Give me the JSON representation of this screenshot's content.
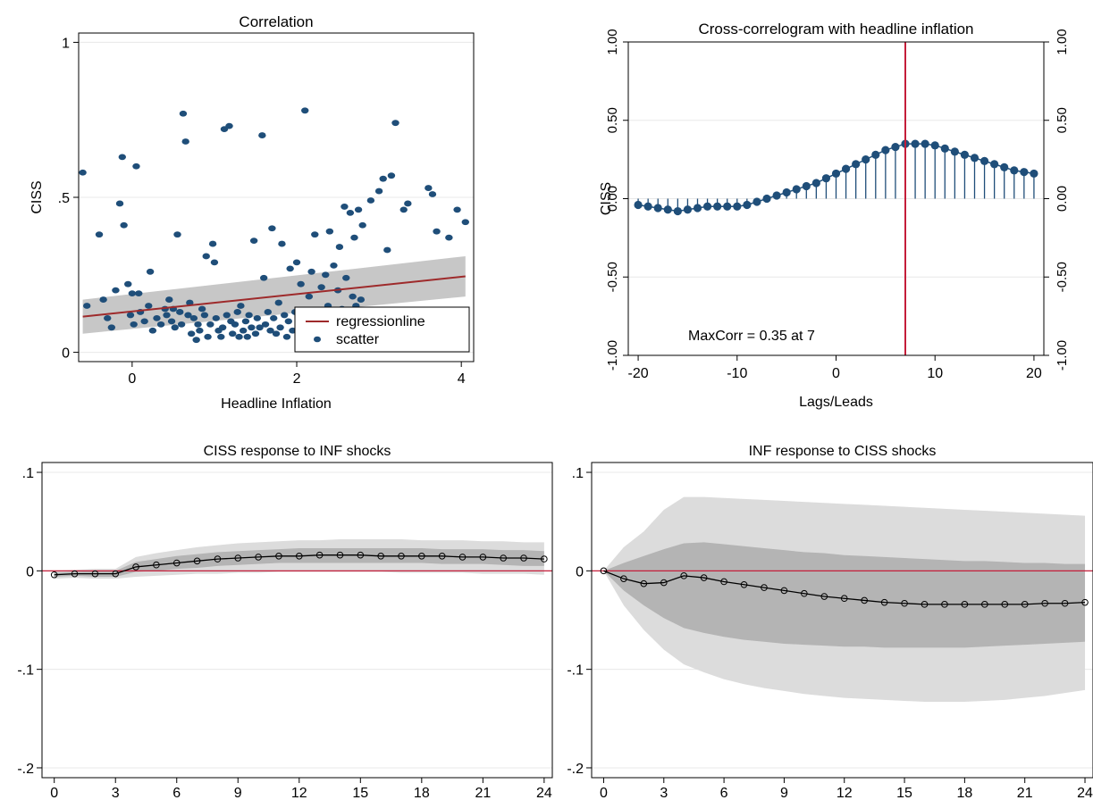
{
  "colors": {
    "navy": "#1f4e79",
    "regression": "#9e2a2b",
    "refline": "#c41e3a",
    "ci_outer": "#dcdcdc",
    "ci_inner": "#b4b4b4",
    "ci_band": "#bdbdbd",
    "grid": "#e8e8e8"
  },
  "chart_data": [
    {
      "type": "scatter",
      "title": "Correlation",
      "xlabel": "Headline Inflation",
      "ylabel": "CISS",
      "xlim": [
        -0.65,
        4.15
      ],
      "ylim": [
        -0.03,
        1.03
      ],
      "x_ticks": [
        0,
        2,
        4
      ],
      "x_tick_labels": [
        "0",
        "2",
        "4"
      ],
      "y_ticks": [
        0,
        0.5,
        1
      ],
      "y_tick_labels": [
        "0",
        ".5",
        "1"
      ],
      "grid": true,
      "legend_position": "bottom-right",
      "legend": [
        "regressionline",
        "scatter"
      ],
      "regression": {
        "x": [
          -0.6,
          4.05
        ],
        "y": [
          0.115,
          0.245
        ],
        "ci_upper": [
          0.17,
          0.31
        ],
        "ci_lower": [
          0.06,
          0.18
        ]
      },
      "points": [
        [
          -0.6,
          0.58
        ],
        [
          -0.55,
          0.15
        ],
        [
          -0.4,
          0.38
        ],
        [
          -0.35,
          0.17
        ],
        [
          -0.3,
          0.11
        ],
        [
          -0.25,
          0.08
        ],
        [
          -0.2,
          0.2
        ],
        [
          -0.15,
          0.48
        ],
        [
          -0.12,
          0.63
        ],
        [
          -0.1,
          0.41
        ],
        [
          -0.05,
          0.22
        ],
        [
          -0.02,
          0.12
        ],
        [
          0.0,
          0.19
        ],
        [
          0.02,
          0.09
        ],
        [
          0.05,
          0.6
        ],
        [
          0.08,
          0.19
        ],
        [
          0.1,
          0.13
        ],
        [
          0.15,
          0.1
        ],
        [
          0.2,
          0.15
        ],
        [
          0.22,
          0.26
        ],
        [
          0.25,
          0.07
        ],
        [
          0.3,
          0.11
        ],
        [
          0.35,
          0.09
        ],
        [
          0.4,
          0.14
        ],
        [
          0.42,
          0.12
        ],
        [
          0.45,
          0.17
        ],
        [
          0.48,
          0.1
        ],
        [
          0.5,
          0.14
        ],
        [
          0.52,
          0.08
        ],
        [
          0.55,
          0.38
        ],
        [
          0.58,
          0.13
        ],
        [
          0.6,
          0.09
        ],
        [
          0.62,
          0.77
        ],
        [
          0.65,
          0.68
        ],
        [
          0.68,
          0.12
        ],
        [
          0.7,
          0.16
        ],
        [
          0.72,
          0.06
        ],
        [
          0.75,
          0.11
        ],
        [
          0.78,
          0.04
        ],
        [
          0.8,
          0.09
        ],
        [
          0.82,
          0.07
        ],
        [
          0.85,
          0.14
        ],
        [
          0.88,
          0.12
        ],
        [
          0.9,
          0.31
        ],
        [
          0.92,
          0.05
        ],
        [
          0.95,
          0.09
        ],
        [
          0.98,
          0.35
        ],
        [
          1.0,
          0.29
        ],
        [
          1.02,
          0.11
        ],
        [
          1.05,
          0.07
        ],
        [
          1.08,
          0.05
        ],
        [
          1.1,
          0.08
        ],
        [
          1.12,
          0.72
        ],
        [
          1.15,
          0.12
        ],
        [
          1.18,
          0.73
        ],
        [
          1.2,
          0.1
        ],
        [
          1.22,
          0.06
        ],
        [
          1.25,
          0.09
        ],
        [
          1.28,
          0.13
        ],
        [
          1.3,
          0.05
        ],
        [
          1.32,
          0.15
        ],
        [
          1.35,
          0.07
        ],
        [
          1.38,
          0.1
        ],
        [
          1.4,
          0.05
        ],
        [
          1.42,
          0.12
        ],
        [
          1.45,
          0.08
        ],
        [
          1.48,
          0.36
        ],
        [
          1.5,
          0.06
        ],
        [
          1.52,
          0.11
        ],
        [
          1.55,
          0.08
        ],
        [
          1.58,
          0.7
        ],
        [
          1.6,
          0.24
        ],
        [
          1.62,
          0.09
        ],
        [
          1.65,
          0.13
        ],
        [
          1.68,
          0.07
        ],
        [
          1.7,
          0.4
        ],
        [
          1.72,
          0.11
        ],
        [
          1.75,
          0.06
        ],
        [
          1.78,
          0.16
        ],
        [
          1.8,
          0.08
        ],
        [
          1.82,
          0.35
        ],
        [
          1.85,
          0.12
        ],
        [
          1.88,
          0.05
        ],
        [
          1.9,
          0.1
        ],
        [
          1.92,
          0.27
        ],
        [
          1.95,
          0.07
        ],
        [
          1.98,
          0.13
        ],
        [
          2.0,
          0.29
        ],
        [
          2.02,
          0.09
        ],
        [
          2.05,
          0.22
        ],
        [
          2.08,
          0.06
        ],
        [
          2.1,
          0.78
        ],
        [
          2.12,
          0.11
        ],
        [
          2.15,
          0.18
        ],
        [
          2.18,
          0.26
        ],
        [
          2.2,
          0.08
        ],
        [
          2.22,
          0.38
        ],
        [
          2.25,
          0.13
        ],
        [
          2.28,
          0.07
        ],
        [
          2.3,
          0.21
        ],
        [
          2.32,
          0.1
        ],
        [
          2.35,
          0.25
        ],
        [
          2.38,
          0.15
        ],
        [
          2.4,
          0.39
        ],
        [
          2.42,
          0.12
        ],
        [
          2.45,
          0.28
        ],
        [
          2.48,
          0.09
        ],
        [
          2.5,
          0.2
        ],
        [
          2.52,
          0.34
        ],
        [
          2.55,
          0.14
        ],
        [
          2.58,
          0.47
        ],
        [
          2.6,
          0.24
        ],
        [
          2.62,
          0.12
        ],
        [
          2.65,
          0.45
        ],
        [
          2.68,
          0.18
        ],
        [
          2.7,
          0.37
        ],
        [
          2.72,
          0.15
        ],
        [
          2.75,
          0.46
        ],
        [
          2.78,
          0.17
        ],
        [
          2.8,
          0.41
        ],
        [
          2.9,
          0.49
        ],
        [
          3.0,
          0.52
        ],
        [
          3.05,
          0.56
        ],
        [
          3.1,
          0.33
        ],
        [
          3.15,
          0.57
        ],
        [
          3.2,
          0.74
        ],
        [
          3.3,
          0.46
        ],
        [
          3.35,
          0.48
        ],
        [
          3.6,
          0.53
        ],
        [
          3.65,
          0.51
        ],
        [
          3.7,
          0.39
        ],
        [
          3.85,
          0.37
        ],
        [
          3.95,
          0.46
        ],
        [
          4.05,
          0.42
        ]
      ]
    },
    {
      "type": "bar",
      "title": "Cross-correlogram with headline inflation",
      "xlabel": "Lags/Leads",
      "ylabel": "CISS",
      "xlim": [
        -21,
        21
      ],
      "ylim": [
        -1,
        1
      ],
      "x_ticks": [
        -20,
        -10,
        0,
        10,
        20
      ],
      "x_tick_labels": [
        "-20",
        "-10",
        "0",
        "10",
        "20"
      ],
      "y_ticks": [
        -1,
        -0.5,
        0,
        0.5,
        1
      ],
      "y_tick_labels": [
        "-1.00",
        "-0.50",
        "0.00",
        "0.50",
        "1.00"
      ],
      "grid": true,
      "reference_line_x": 7,
      "annotation": "MaxCorr = 0.35 at 7",
      "x": [
        -20,
        -19,
        -18,
        -17,
        -16,
        -15,
        -14,
        -13,
        -12,
        -11,
        -10,
        -9,
        -8,
        -7,
        -6,
        -5,
        -4,
        -3,
        -2,
        -1,
        0,
        1,
        2,
        3,
        4,
        5,
        6,
        7,
        8,
        9,
        10,
        11,
        12,
        13,
        14,
        15,
        16,
        17,
        18,
        19,
        20
      ],
      "values": [
        -0.04,
        -0.05,
        -0.06,
        -0.07,
        -0.08,
        -0.07,
        -0.06,
        -0.05,
        -0.05,
        -0.05,
        -0.05,
        -0.04,
        -0.02,
        0.0,
        0.02,
        0.04,
        0.06,
        0.08,
        0.1,
        0.13,
        0.16,
        0.19,
        0.22,
        0.25,
        0.28,
        0.31,
        0.33,
        0.35,
        0.35,
        0.35,
        0.34,
        0.32,
        0.3,
        0.28,
        0.26,
        0.24,
        0.22,
        0.2,
        0.18,
        0.17,
        0.16
      ]
    },
    {
      "type": "line",
      "title": "CISS response to INF shocks",
      "xlabel": "",
      "ylabel": "",
      "xlim": [
        -0.6,
        24.4
      ],
      "ylim": [
        -0.21,
        0.11
      ],
      "x_ticks": [
        0,
        3,
        6,
        9,
        12,
        15,
        18,
        21,
        24
      ],
      "x_tick_labels": [
        "0",
        "3",
        "6",
        "9",
        "12",
        "15",
        "18",
        "21",
        "24"
      ],
      "y_ticks": [
        -0.2,
        -0.1,
        0,
        0.1
      ],
      "y_tick_labels": [
        "-.2",
        "-.1",
        "0",
        ".1"
      ],
      "grid": true,
      "x": [
        0,
        1,
        2,
        3,
        4,
        5,
        6,
        7,
        8,
        9,
        10,
        11,
        12,
        13,
        14,
        15,
        16,
        17,
        18,
        19,
        20,
        21,
        22,
        23,
        24
      ],
      "series": [
        {
          "values": [
            -0.004,
            -0.003,
            -0.003,
            -0.003,
            0.004,
            0.006,
            0.008,
            0.01,
            0.012,
            0.013,
            0.014,
            0.015,
            0.015,
            0.016,
            0.016,
            0.016,
            0.015,
            0.015,
            0.015,
            0.015,
            0.014,
            0.014,
            0.013,
            0.013,
            0.012
          ]
        }
      ],
      "ci_outer_upper": [
        0.0,
        0.001,
        0.002,
        0.002,
        0.014,
        0.018,
        0.021,
        0.024,
        0.026,
        0.028,
        0.029,
        0.03,
        0.031,
        0.031,
        0.032,
        0.032,
        0.032,
        0.032,
        0.031,
        0.031,
        0.031,
        0.03,
        0.03,
        0.029,
        0.029
      ],
      "ci_outer_lower": [
        -0.008,
        -0.007,
        -0.008,
        -0.008,
        -0.006,
        -0.005,
        -0.004,
        -0.003,
        -0.003,
        -0.002,
        -0.002,
        -0.001,
        -0.001,
        -0.001,
        -0.001,
        -0.001,
        -0.001,
        -0.002,
        -0.002,
        -0.002,
        -0.002,
        -0.003,
        -0.003,
        -0.003,
        -0.004
      ],
      "ci_inner_upper": [
        -0.002,
        -0.001,
        0.0,
        0.0,
        0.009,
        0.012,
        0.015,
        0.017,
        0.019,
        0.02,
        0.021,
        0.022,
        0.023,
        0.023,
        0.023,
        0.023,
        0.023,
        0.023,
        0.023,
        0.022,
        0.022,
        0.022,
        0.021,
        0.021,
        0.02
      ],
      "ci_inner_lower": [
        -0.006,
        -0.005,
        -0.006,
        -0.006,
        -0.001,
        0.0,
        0.002,
        0.003,
        0.005,
        0.006,
        0.007,
        0.008,
        0.008,
        0.008,
        0.008,
        0.008,
        0.008,
        0.008,
        0.008,
        0.007,
        0.007,
        0.007,
        0.006,
        0.005,
        0.005
      ]
    },
    {
      "type": "line",
      "title": "INF response to CISS shocks",
      "xlabel": "",
      "ylabel": "",
      "xlim": [
        -0.6,
        24.4
      ],
      "ylim": [
        -0.21,
        0.11
      ],
      "x_ticks": [
        0,
        3,
        6,
        9,
        12,
        15,
        18,
        21,
        24
      ],
      "x_tick_labels": [
        "0",
        "3",
        "6",
        "9",
        "12",
        "15",
        "18",
        "21",
        "24"
      ],
      "y_ticks": [
        -0.2,
        -0.1,
        0,
        0.1
      ],
      "y_tick_labels": [
        "-.2",
        "-.1",
        "0",
        ".1"
      ],
      "grid": true,
      "x": [
        0,
        1,
        2,
        3,
        4,
        5,
        6,
        7,
        8,
        9,
        10,
        11,
        12,
        13,
        14,
        15,
        16,
        17,
        18,
        19,
        20,
        21,
        22,
        23,
        24
      ],
      "series": [
        {
          "values": [
            0.0,
            -0.008,
            -0.013,
            -0.012,
            -0.005,
            -0.007,
            -0.011,
            -0.014,
            -0.017,
            -0.02,
            -0.023,
            -0.026,
            -0.028,
            -0.03,
            -0.032,
            -0.033,
            -0.034,
            -0.034,
            -0.034,
            -0.034,
            -0.034,
            -0.034,
            -0.033,
            -0.033,
            -0.032
          ]
        }
      ],
      "ci_outer_upper": [
        0.0,
        0.024,
        0.04,
        0.062,
        0.075,
        0.075,
        0.074,
        0.073,
        0.072,
        0.071,
        0.07,
        0.069,
        0.068,
        0.067,
        0.066,
        0.065,
        0.064,
        0.063,
        0.062,
        0.061,
        0.06,
        0.059,
        0.058,
        0.057,
        0.056
      ],
      "ci_outer_lower": [
        0.0,
        -0.035,
        -0.06,
        -0.08,
        -0.095,
        -0.103,
        -0.11,
        -0.115,
        -0.119,
        -0.122,
        -0.125,
        -0.127,
        -0.129,
        -0.13,
        -0.131,
        -0.132,
        -0.133,
        -0.133,
        -0.133,
        -0.132,
        -0.131,
        -0.129,
        -0.127,
        -0.124,
        -0.121
      ],
      "ci_inner_upper": [
        0.0,
        0.008,
        0.015,
        0.022,
        0.028,
        0.029,
        0.027,
        0.025,
        0.023,
        0.021,
        0.019,
        0.018,
        0.016,
        0.015,
        0.014,
        0.013,
        0.012,
        0.011,
        0.01,
        0.01,
        0.009,
        0.008,
        0.008,
        0.007,
        0.007
      ],
      "ci_inner_lower": [
        0.0,
        -0.02,
        -0.035,
        -0.048,
        -0.058,
        -0.063,
        -0.067,
        -0.07,
        -0.072,
        -0.074,
        -0.075,
        -0.076,
        -0.077,
        -0.077,
        -0.078,
        -0.078,
        -0.078,
        -0.078,
        -0.078,
        -0.077,
        -0.076,
        -0.075,
        -0.074,
        -0.073,
        -0.072
      ]
    }
  ]
}
